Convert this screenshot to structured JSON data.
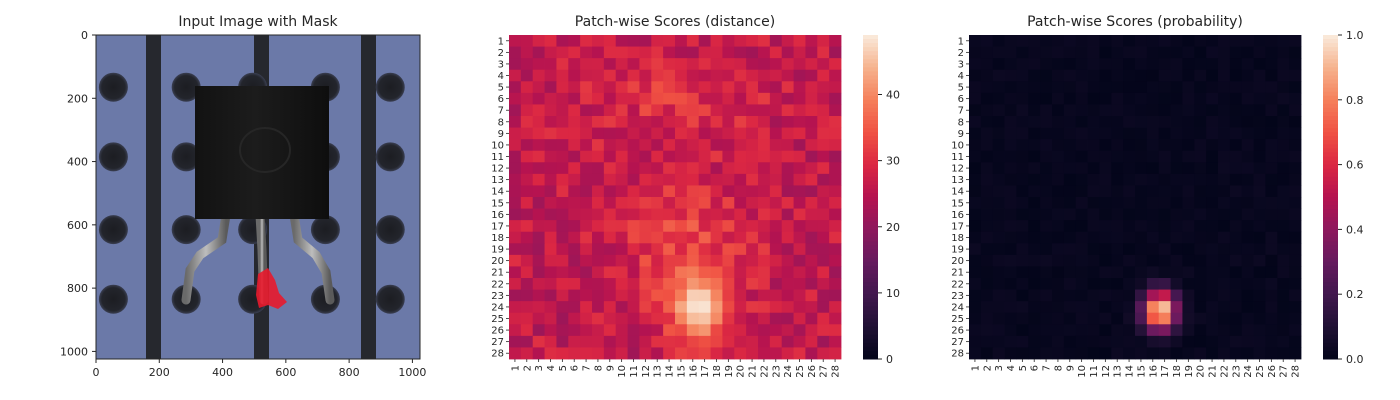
{
  "chart_data": [
    {
      "type": "image",
      "title": "Input Image with Mask",
      "xlim": [
        0,
        1024
      ],
      "ylim": [
        1024,
        0
      ],
      "xticks": [
        0,
        200,
        400,
        600,
        800,
        1000
      ],
      "yticks": [
        0,
        200,
        400,
        600,
        800,
        1000
      ],
      "image_description": "Dark rectangular transistor body with three metal leads on a blue-grey board with vertical dark stripes and round holes; a red mask covers the bent tip of the middle lead.",
      "mask_color": "#e8192c",
      "mask_region": {
        "x": [
          500,
          600
        ],
        "y": [
          750,
          895
        ]
      }
    },
    {
      "type": "heatmap",
      "title": "Patch-wise Scores (distance)",
      "rows": [
        "1",
        "2",
        "3",
        "4",
        "5",
        "6",
        "7",
        "8",
        "9",
        "10",
        "11",
        "12",
        "13",
        "14",
        "15",
        "16",
        "17",
        "18",
        "19",
        "20",
        "21",
        "22",
        "23",
        "24",
        "25",
        "26",
        "27",
        "28"
      ],
      "cols": [
        "1",
        "2",
        "3",
        "4",
        "5",
        "6",
        "7",
        "8",
        "9",
        "10",
        "11",
        "12",
        "13",
        "14",
        "15",
        "16",
        "17",
        "18",
        "19",
        "20",
        "21",
        "22",
        "23",
        "24",
        "25",
        "26",
        "27",
        "28"
      ],
      "colormap": "rocket",
      "vmin": 0,
      "vmax": 49,
      "colorbar_ticks": [
        0,
        10,
        20,
        30,
        40
      ],
      "base_value": 26,
      "hotspot": {
        "row": 24,
        "col": 16.5,
        "peak": 49,
        "radius_rows": 2.8,
        "radius_cols": 2.2
      },
      "broad_region": {
        "row": 19,
        "col": 15.5,
        "amplitude": 7,
        "radius_rows": 6,
        "radius_cols": 5
      },
      "upper_band": {
        "row": 6,
        "col": 14,
        "amplitude": 4,
        "radius_rows": 3,
        "radius_cols": 8
      }
    },
    {
      "type": "heatmap",
      "title": "Patch-wise Scores (probability)",
      "rows": [
        "1",
        "2",
        "3",
        "4",
        "5",
        "6",
        "7",
        "8",
        "9",
        "10",
        "11",
        "12",
        "13",
        "14",
        "15",
        "16",
        "17",
        "18",
        "19",
        "20",
        "21",
        "22",
        "23",
        "24",
        "25",
        "26",
        "27",
        "28"
      ],
      "cols": [
        "1",
        "2",
        "3",
        "4",
        "5",
        "6",
        "7",
        "8",
        "9",
        "10",
        "11",
        "12",
        "13",
        "14",
        "15",
        "16",
        "17",
        "18",
        "19",
        "20",
        "21",
        "22",
        "23",
        "24",
        "25",
        "26",
        "27",
        "28"
      ],
      "colormap": "rocket",
      "vmin": 0,
      "vmax": 1,
      "colorbar_ticks": [
        "0.0",
        "0.2",
        "0.4",
        "0.6",
        "0.8",
        "1.0"
      ],
      "hotspot": {
        "row": 24.3,
        "col": 16.6,
        "peak": 1.0,
        "radius_rows": 1.6,
        "radius_cols": 1.3
      }
    }
  ]
}
